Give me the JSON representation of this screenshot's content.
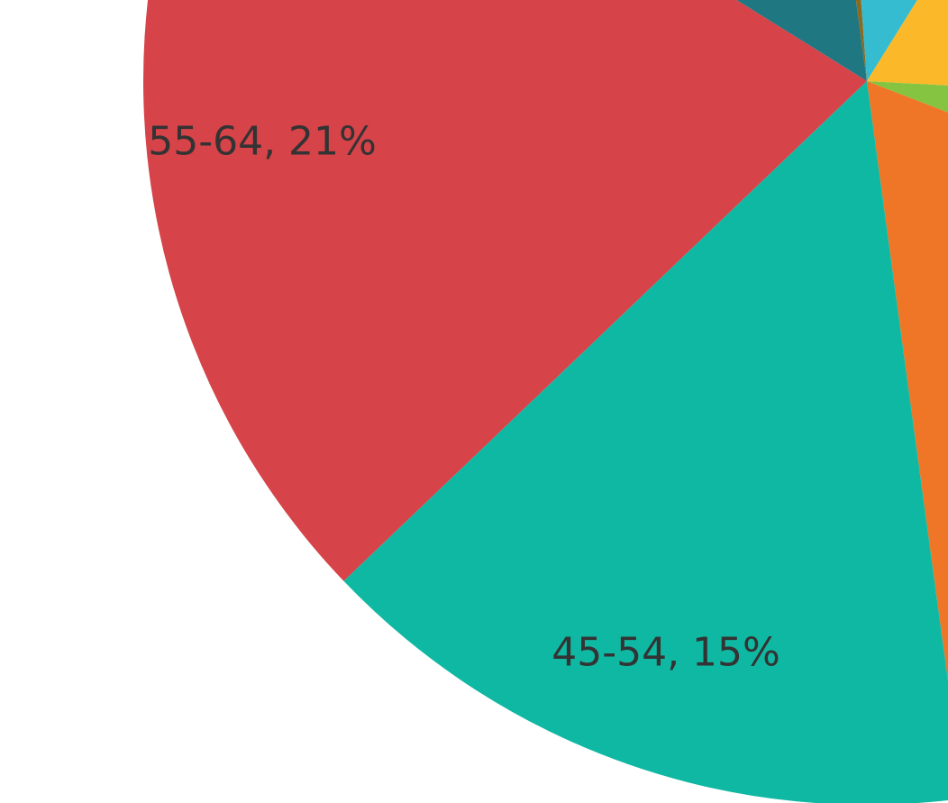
{
  "chart_data": {
    "type": "pie",
    "labels": [
      "55-64, 21%",
      null,
      null,
      null,
      null,
      null,
      null,
      "45-54, 15%"
    ],
    "values": [
      21,
      14,
      1,
      10,
      17,
      5,
      17,
      15
    ],
    "colors": [
      "#d64349",
      "#1f7782",
      "#8b6a1f",
      "#35bcd1",
      "#fbb829",
      "#84c441",
      "#ef7626",
      "#0fb8a2"
    ]
  }
}
